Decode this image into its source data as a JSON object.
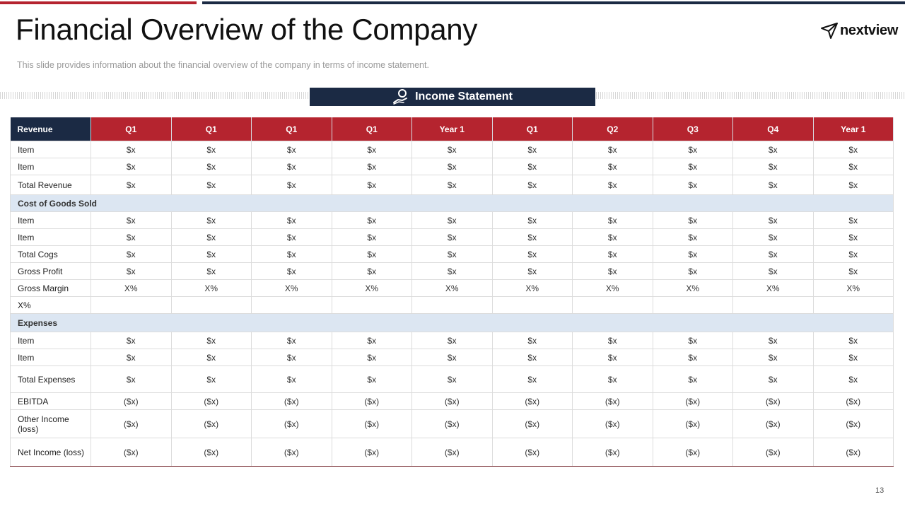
{
  "slide": {
    "title": "Financial Overview of the Company",
    "subtitle": "This slide provides  information  about the financial overview  of the company in terms of income statement.",
    "logo_text": "nextview",
    "banner_label": "Income Statement",
    "page_number": "13",
    "colors": {
      "accent_red": "#b5242f",
      "navy": "#1b2a44",
      "section_fill": "#dce6f2"
    }
  },
  "table": {
    "header": [
      "Revenue",
      "Q1",
      "Q1",
      "Q1",
      "Q1",
      "Year 1",
      "Q1",
      "Q2",
      "Q3",
      "Q4",
      "Year 1"
    ],
    "rows": [
      {
        "type": "data",
        "h": 24,
        "label": "Item",
        "cells": [
          "$x",
          "$x",
          "$x",
          "$x",
          "$x",
          "$x",
          "$x",
          "$x",
          "$x",
          "$x"
        ]
      },
      {
        "type": "data",
        "h": 24,
        "label": "Item",
        "cells": [
          "$x",
          "$x",
          "$x",
          "$x",
          "$x",
          "$x",
          "$x",
          "$x",
          "$x",
          "$x"
        ]
      },
      {
        "type": "data",
        "h": 28,
        "label": "Total Revenue",
        "cells": [
          "$x",
          "$x",
          "$x",
          "$x",
          "$x",
          "$x",
          "$x",
          "$x",
          "$x",
          "$x"
        ]
      },
      {
        "type": "section",
        "h": 24,
        "label": "Cost of Goods  Sold"
      },
      {
        "type": "data",
        "h": 24,
        "label": "Item",
        "cells": [
          "$x",
          "$x",
          "$x",
          "$x",
          "$x",
          "$x",
          "$x",
          "$x",
          "$x",
          "$x"
        ]
      },
      {
        "type": "data",
        "h": 24,
        "label": "Item",
        "cells": [
          "$x",
          "$x",
          "$x",
          "$x",
          "$x",
          "$x",
          "$x",
          "$x",
          "$x",
          "$x"
        ]
      },
      {
        "type": "data",
        "h": 24,
        "label": "Total Cogs",
        "cells": [
          "$x",
          "$x",
          "$x",
          "$x",
          "$x",
          "$x",
          "$x",
          "$x",
          "$x",
          "$x"
        ]
      },
      {
        "type": "data",
        "h": 24,
        "label": "Gross Profit",
        "cells": [
          "$x",
          "$x",
          "$x",
          "$x",
          "$x",
          "$x",
          "$x",
          "$x",
          "$x",
          "$x"
        ]
      },
      {
        "type": "data",
        "h": 24,
        "label": "Gross Margin",
        "cells": [
          "X%",
          "X%",
          "X%",
          "X%",
          "X%",
          "X%",
          "X%",
          "X%",
          "X%",
          "X%"
        ]
      },
      {
        "type": "data",
        "h": 24,
        "label": "X%",
        "cells": [
          "",
          "",
          "",
          "",
          "",
          "",
          "",
          "",
          "",
          ""
        ]
      },
      {
        "type": "section",
        "h": 26,
        "label": "Expenses"
      },
      {
        "type": "data",
        "h": 24,
        "label": "Item",
        "cells": [
          "$x",
          "$x",
          "$x",
          "$x",
          "$x",
          "$x",
          "$x",
          "$x",
          "$x",
          "$x"
        ]
      },
      {
        "type": "data",
        "h": 24,
        "label": "Item",
        "cells": [
          "$x",
          "$x",
          "$x",
          "$x",
          "$x",
          "$x",
          "$x",
          "$x",
          "$x",
          "$x"
        ]
      },
      {
        "type": "data",
        "h": 38,
        "label": "Total Expenses",
        "cells": [
          "$x",
          "$x",
          "$x",
          "$x",
          "$x",
          "$x",
          "$x",
          "$x",
          "$x",
          "$x"
        ]
      },
      {
        "type": "data",
        "h": 24,
        "label": "EBITDA",
        "cells": [
          "($x)",
          "($x)",
          "($x)",
          "($x)",
          "($x)",
          "($x)",
          "($x)",
          "($x)",
          "($x)",
          "($x)"
        ]
      },
      {
        "type": "data",
        "h": 40,
        "label": "Other Income (loss)",
        "cells": [
          "($x)",
          "($x)",
          "($x)",
          "($x)",
          "($x)",
          "($x)",
          "($x)",
          "($x)",
          "($x)",
          "($x)"
        ]
      },
      {
        "type": "data",
        "h": 40,
        "label": "Net Income (loss)",
        "cells": [
          "($x)",
          "($x)",
          "($x)",
          "($x)",
          "($x)",
          "($x)",
          "($x)",
          "($x)",
          "($x)",
          "($x)"
        ]
      }
    ]
  }
}
